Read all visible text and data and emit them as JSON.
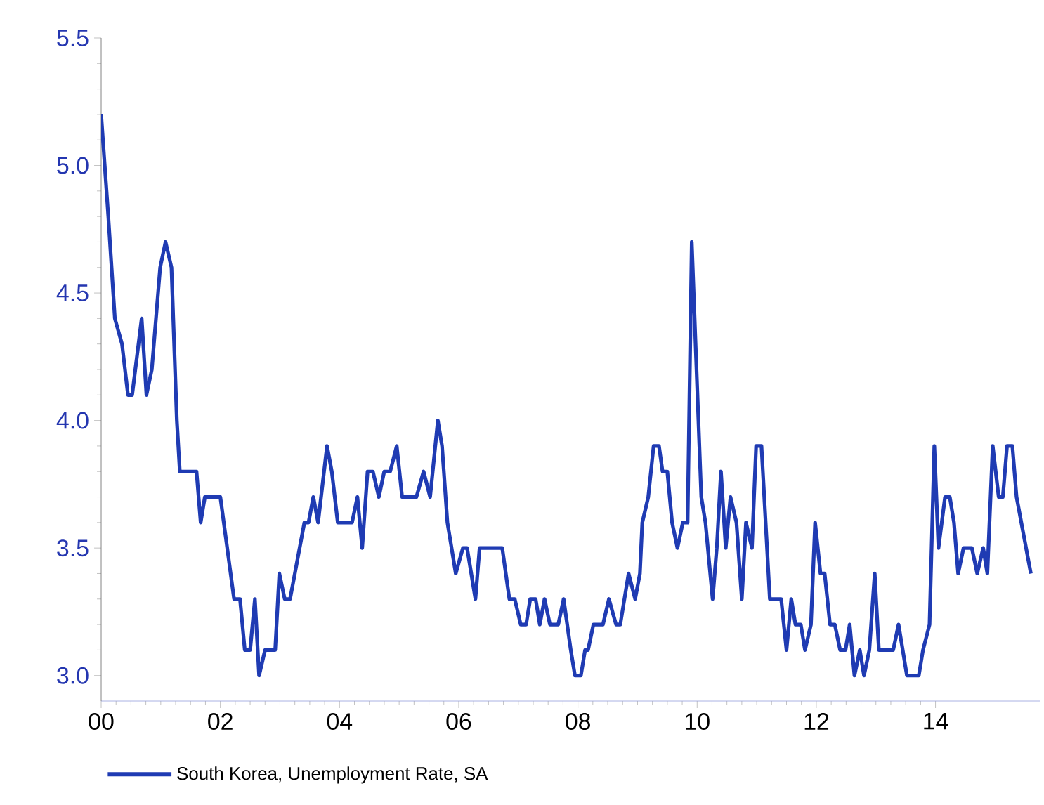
{
  "chart_data": {
    "type": "line",
    "xlim": [
      2000,
      2015.75
    ],
    "ylim": [
      2.9,
      5.5
    ],
    "xticks": [
      {
        "value": 2000,
        "label": "00"
      },
      {
        "value": 2002,
        "label": "02"
      },
      {
        "value": 2004,
        "label": "04"
      },
      {
        "value": 2006,
        "label": "06"
      },
      {
        "value": 2008,
        "label": "08"
      },
      {
        "value": 2010,
        "label": "10"
      },
      {
        "value": 2012,
        "label": "12"
      },
      {
        "value": 2014,
        "label": "14"
      }
    ],
    "yticks": [
      {
        "value": 3.0,
        "label": "3.0"
      },
      {
        "value": 3.5,
        "label": "3.5"
      },
      {
        "value": 4.0,
        "label": "4.0"
      },
      {
        "value": 4.5,
        "label": "4.5"
      },
      {
        "value": 5.0,
        "label": "5.0"
      },
      {
        "value": 5.5,
        "label": "5.5"
      }
    ],
    "grid": false,
    "legend": "bottom left",
    "marker": "none",
    "line_style": "solid",
    "series": [
      {
        "name": "South Korea, Unemployment Rate, SA",
        "color": "#1f3bb3",
        "x": [
          2000.0,
          2000.12,
          2000.23,
          2000.35,
          2000.45,
          2000.52,
          2000.68,
          2000.76,
          2000.85,
          2000.99,
          2001.08,
          2001.18,
          2001.27,
          2001.32,
          2001.6,
          2001.67,
          2001.74,
          2002.0,
          2002.23,
          2002.33,
          2002.41,
          2002.5,
          2002.58,
          2002.65,
          2002.75,
          2002.92,
          2002.99,
          2003.08,
          2003.17,
          2003.41,
          2003.48,
          2003.56,
          2003.64,
          2003.79,
          2003.87,
          2003.97,
          2004.21,
          2004.3,
          2004.38,
          2004.47,
          2004.56,
          2004.66,
          2004.75,
          2004.85,
          2004.96,
          2005.05,
          2005.29,
          2005.41,
          2005.52,
          2005.65,
          2005.72,
          2005.81,
          2005.95,
          2006.07,
          2006.14,
          2006.28,
          2006.35,
          2006.73,
          2006.85,
          2006.94,
          2007.04,
          2007.13,
          2007.2,
          2007.29,
          2007.36,
          2007.44,
          2007.53,
          2007.67,
          2007.76,
          2007.88,
          2007.95,
          2008.05,
          2008.12,
          2008.17,
          2008.26,
          2008.42,
          2008.52,
          2008.64,
          2008.71,
          2008.85,
          2008.96,
          2009.04,
          2009.08,
          2009.18,
          2009.27,
          2009.36,
          2009.42,
          2009.5,
          2009.58,
          2009.67,
          2009.76,
          2009.84,
          2009.91,
          2010.07,
          2010.14,
          2010.26,
          2010.33,
          2010.4,
          2010.48,
          2010.56,
          2010.66,
          2010.75,
          2010.82,
          2010.92,
          2010.99,
          2011.08,
          2011.22,
          2011.41,
          2011.5,
          2011.58,
          2011.65,
          2011.74,
          2011.81,
          2011.91,
          2011.98,
          2012.07,
          2012.14,
          2012.23,
          2012.31,
          2012.4,
          2012.49,
          2012.56,
          2012.64,
          2012.73,
          2012.8,
          2012.89,
          2012.98,
          2013.05,
          2013.29,
          2013.38,
          2013.52,
          2013.72,
          2013.79,
          2013.9,
          2013.98,
          2014.05,
          2014.16,
          2014.24,
          2014.31,
          2014.38,
          2014.47,
          2014.61,
          2014.7,
          2014.8,
          2014.87,
          2014.96,
          2015.06,
          2015.13,
          2015.2,
          2015.29,
          2015.36,
          2015.6
        ],
        "values": [
          5.2,
          4.8,
          4.4,
          4.3,
          4.1,
          4.1,
          4.4,
          4.1,
          4.2,
          4.6,
          4.7,
          4.6,
          4.0,
          3.8,
          3.8,
          3.6,
          3.7,
          3.7,
          3.3,
          3.3,
          3.1,
          3.1,
          3.3,
          3.0,
          3.1,
          3.1,
          3.4,
          3.3,
          3.3,
          3.6,
          3.6,
          3.7,
          3.6,
          3.9,
          3.8,
          3.6,
          3.6,
          3.7,
          3.5,
          3.8,
          3.8,
          3.7,
          3.8,
          3.8,
          3.9,
          3.7,
          3.7,
          3.8,
          3.7,
          4.0,
          3.9,
          3.6,
          3.4,
          3.5,
          3.5,
          3.3,
          3.5,
          3.5,
          3.3,
          3.3,
          3.2,
          3.2,
          3.3,
          3.3,
          3.2,
          3.3,
          3.2,
          3.2,
          3.3,
          3.1,
          3.0,
          3.0,
          3.1,
          3.1,
          3.2,
          3.2,
          3.3,
          3.2,
          3.2,
          3.4,
          3.3,
          3.4,
          3.6,
          3.7,
          3.9,
          3.9,
          3.8,
          3.8,
          3.6,
          3.5,
          3.6,
          3.6,
          4.7,
          3.7,
          3.6,
          3.3,
          3.5,
          3.8,
          3.5,
          3.7,
          3.6,
          3.3,
          3.6,
          3.5,
          3.9,
          3.9,
          3.3,
          3.3,
          3.1,
          3.3,
          3.2,
          3.2,
          3.1,
          3.2,
          3.6,
          3.4,
          3.4,
          3.2,
          3.2,
          3.1,
          3.1,
          3.2,
          3.0,
          3.1,
          3.0,
          3.1,
          3.4,
          3.1,
          3.1,
          3.2,
          3.0,
          3.0,
          3.1,
          3.2,
          3.9,
          3.5,
          3.7,
          3.7,
          3.6,
          3.4,
          3.5,
          3.5,
          3.4,
          3.5,
          3.4,
          3.9,
          3.7,
          3.7,
          3.9,
          3.9,
          3.7,
          3.4
        ]
      }
    ]
  }
}
